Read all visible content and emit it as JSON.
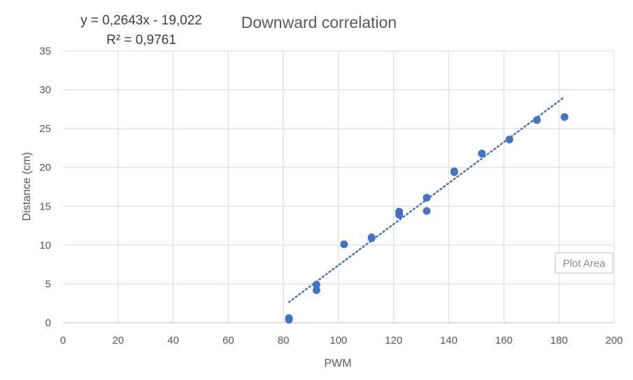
{
  "chart_data": {
    "type": "scatter",
    "title": "Downward correlation",
    "xlabel": "PWM",
    "ylabel": "Distance (cm)",
    "xlim": [
      0,
      200
    ],
    "ylim": [
      0,
      35
    ],
    "x_ticks": [
      0,
      20,
      40,
      60,
      80,
      100,
      120,
      140,
      160,
      180,
      200
    ],
    "y_ticks": [
      0,
      5,
      10,
      15,
      20,
      25,
      30,
      35
    ],
    "grid": true,
    "legend": "none",
    "series": [
      {
        "color": "#4472c4",
        "x": [
          82,
          82,
          92,
          92,
          102,
          112,
          112,
          122,
          122,
          132,
          132,
          142,
          142,
          152,
          162,
          172,
          182
        ],
        "y": [
          0.6,
          0.4,
          4.9,
          4.2,
          10.1,
          10.9,
          11.0,
          14.3,
          13.9,
          16.1,
          14.4,
          19.5,
          19.4,
          21.8,
          23.6,
          26.1,
          26.5
        ]
      }
    ],
    "trendline": {
      "type": "linear",
      "slope": 0.2643,
      "intercept": -19.022,
      "x_range": [
        82,
        182
      ],
      "color": "#4472c4",
      "equation_label": "y = 0,2643x - 19,022",
      "r2_label": "R² = 0,9761"
    },
    "tooltip": "Plot Area"
  }
}
